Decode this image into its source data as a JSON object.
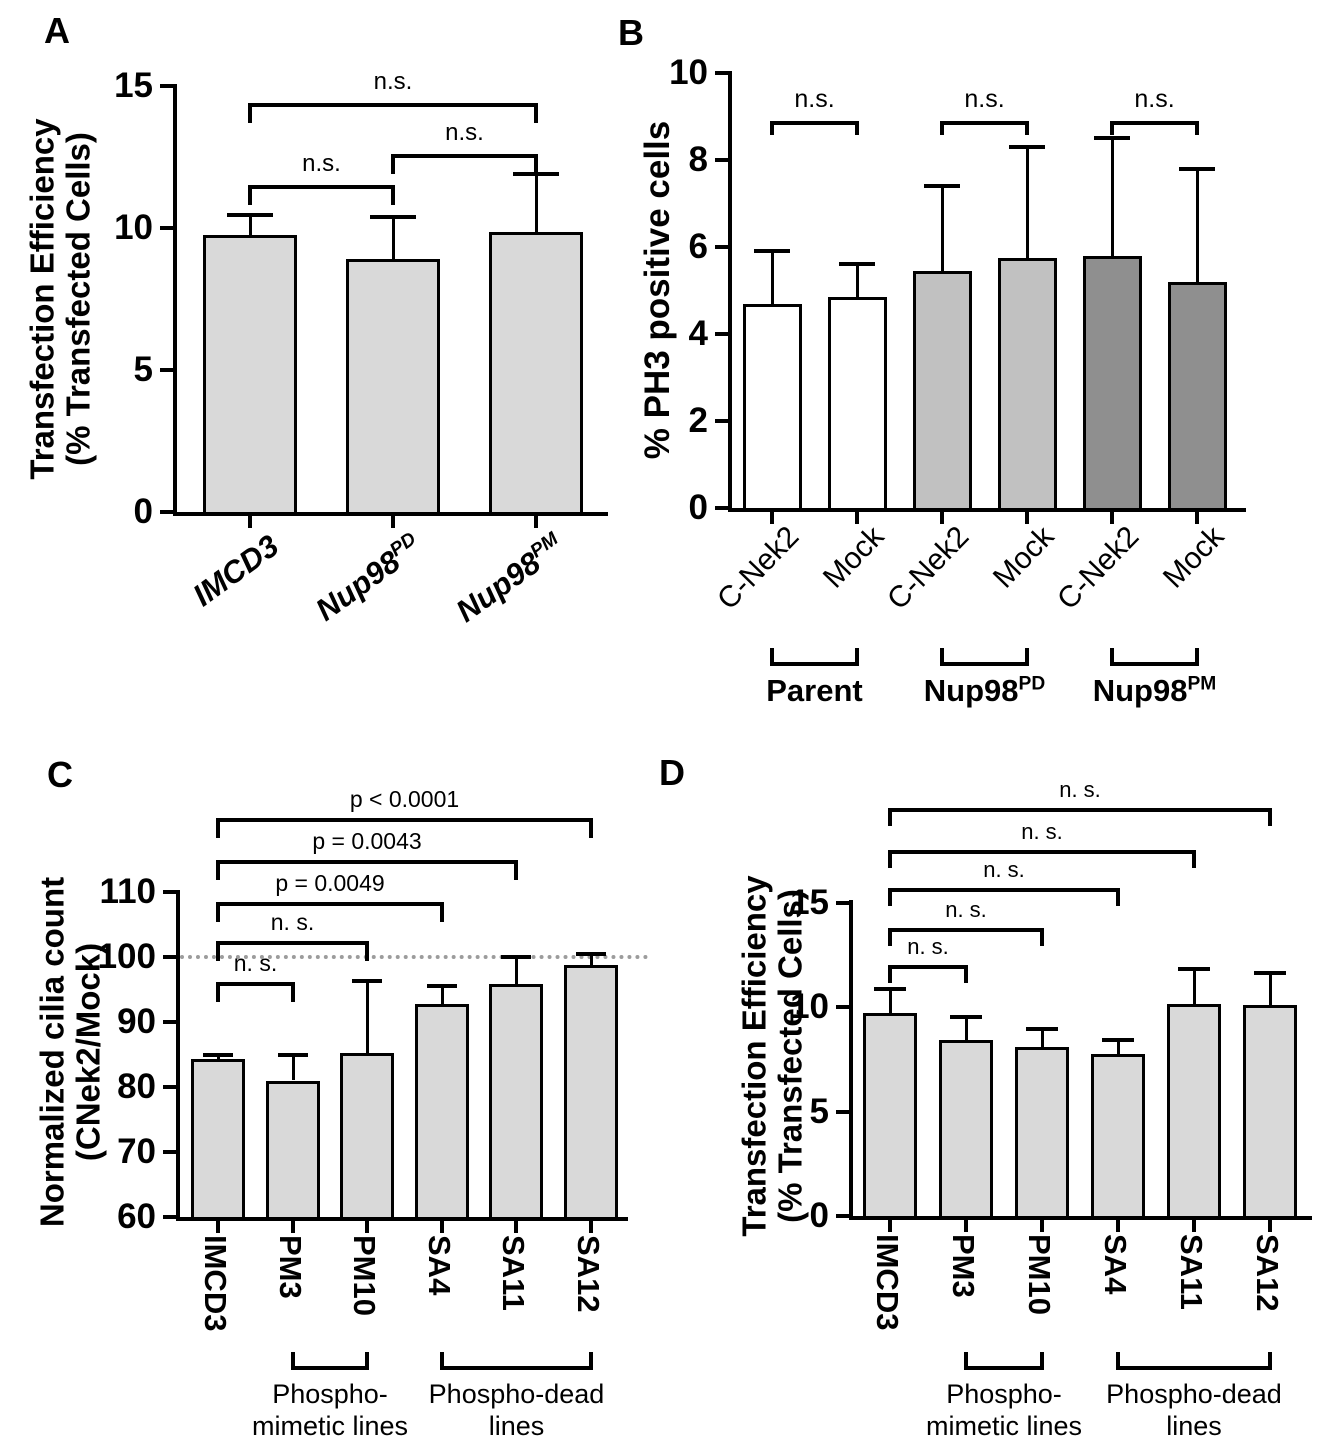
{
  "figure_title": "",
  "colors": {
    "axis": "#000000",
    "bar_light": "#d9d9d9",
    "bar_white": "#ffffff",
    "bar_mid": "#c1c1c1",
    "bar_dark": "#8f8f8f",
    "refline": "#9c9c9c",
    "text": "#000000"
  },
  "chart_data": [
    {
      "panel": "A",
      "type": "bar",
      "ylabel_lines": [
        "Transfection Efficiency",
        "(% Transfected Cells)"
      ],
      "ylim": [
        0,
        15
      ],
      "yticks": [
        0,
        5,
        10,
        15
      ],
      "categories": [
        {
          "text": "IMCD3",
          "sup": ""
        },
        {
          "text": "Nup98",
          "sup": "PD"
        },
        {
          "text": "Nup98",
          "sup": "PM"
        }
      ],
      "values": [
        9.75,
        8.9,
        9.85
      ],
      "errors_up": [
        0.7,
        1.5,
        2.05
      ],
      "fills": [
        "bar_light",
        "bar_light",
        "bar_light"
      ],
      "brackets": [
        {
          "from": 0,
          "to": 1,
          "y": 11.5,
          "label": "n.s."
        },
        {
          "from": 1,
          "to": 2,
          "y": 12.6,
          "label": "n.s."
        },
        {
          "from": 0,
          "to": 2,
          "y": 14.4,
          "label": "n.s."
        }
      ]
    },
    {
      "panel": "B",
      "type": "bar",
      "ylabel_lines": [
        "% PH3 positive cells"
      ],
      "ylim": [
        0,
        10
      ],
      "yticks": [
        0,
        2,
        4,
        6,
        8,
        10
      ],
      "categories": [
        {
          "text": "C-Nek2",
          "sup": ""
        },
        {
          "text": "Mock",
          "sup": ""
        },
        {
          "text": "C-Nek2",
          "sup": ""
        },
        {
          "text": "Mock",
          "sup": ""
        },
        {
          "text": "C-Nek2",
          "sup": ""
        },
        {
          "text": "Mock",
          "sup": ""
        }
      ],
      "values": [
        4.7,
        4.85,
        5.45,
        5.75,
        5.8,
        5.2
      ],
      "errors_up": [
        1.2,
        0.75,
        1.95,
        2.55,
        2.7,
        2.6
      ],
      "fills": [
        "bar_white",
        "bar_white",
        "bar_mid",
        "bar_mid",
        "bar_dark",
        "bar_dark"
      ],
      "brackets": [
        {
          "from": 0,
          "to": 1,
          "y": 8.9,
          "label": "n.s."
        },
        {
          "from": 2,
          "to": 3,
          "y": 8.9,
          "label": "n.s."
        },
        {
          "from": 4,
          "to": 5,
          "y": 8.9,
          "label": "n.s."
        }
      ],
      "groups": [
        {
          "label": "Parent",
          "sup": "",
          "from": 0,
          "to": 1
        },
        {
          "label": "Nup98",
          "sup": "PD",
          "from": 2,
          "to": 3
        },
        {
          "label": "Nup98",
          "sup": "PM",
          "from": 4,
          "to": 5
        }
      ]
    },
    {
      "panel": "C",
      "type": "bar",
      "ylabel_lines": [
        "Normalized cilia count",
        "(CNek2/Mock)"
      ],
      "ylim": [
        60,
        110
      ],
      "yticks": [
        60,
        70,
        80,
        90,
        100,
        110
      ],
      "refline": 100,
      "categories": [
        {
          "text": "IMCD3",
          "sup": ""
        },
        {
          "text": "PM3",
          "sup": ""
        },
        {
          "text": "PM10",
          "sup": ""
        },
        {
          "text": "SA4",
          "sup": ""
        },
        {
          "text": "SA11",
          "sup": ""
        },
        {
          "text": "SA12",
          "sup": ""
        }
      ],
      "values": [
        84.3,
        81.0,
        85.3,
        92.7,
        95.8,
        98.8
      ],
      "errors_up": [
        0.7,
        3.9,
        11.0,
        2.9,
        4.2,
        1.6
      ],
      "fills": [
        "bar_light",
        "bar_light",
        "bar_light",
        "bar_light",
        "bar_light",
        "bar_light"
      ],
      "brackets": [
        {
          "from": 0,
          "to": 1,
          "y": 96.2,
          "label": "n. s."
        },
        {
          "from": 0,
          "to": 2,
          "y": 102.4,
          "label": "n. s."
        },
        {
          "from": 0,
          "to": 3,
          "y": 108.5,
          "label": "p = 0.0049"
        },
        {
          "from": 0,
          "to": 4,
          "y": 114.9,
          "label": "p = 0.0043"
        },
        {
          "from": 0,
          "to": 5,
          "y": 121.4,
          "label": "p < 0.0001"
        }
      ],
      "groups": [
        {
          "label_lines": [
            "Phospho-",
            "mimetic lines"
          ],
          "from": 1,
          "to": 2
        },
        {
          "label_lines": [
            "Phospho-dead",
            "lines"
          ],
          "from": 3,
          "to": 5
        }
      ]
    },
    {
      "panel": "D",
      "type": "bar",
      "ylabel_lines": [
        "Transfection Efficiency",
        "(% Transfected Cells)"
      ],
      "ylim": [
        0,
        15
      ],
      "yticks": [
        0,
        5,
        10,
        15
      ],
      "categories": [
        {
          "text": "IMCD3",
          "sup": ""
        },
        {
          "text": "PM3",
          "sup": ""
        },
        {
          "text": "PM10",
          "sup": ""
        },
        {
          "text": "SA4",
          "sup": ""
        },
        {
          "text": "SA11",
          "sup": ""
        },
        {
          "text": "SA12",
          "sup": ""
        }
      ],
      "values": [
        9.7,
        8.4,
        8.1,
        7.75,
        10.15,
        10.1
      ],
      "errors_up": [
        1.15,
        1.1,
        0.85,
        0.65,
        1.65,
        1.55
      ],
      "fills": [
        "bar_light",
        "bar_light",
        "bar_light",
        "bar_light",
        "bar_light",
        "bar_light"
      ],
      "brackets": [
        {
          "from": 0,
          "to": 1,
          "y": 12.0,
          "label": "n. s."
        },
        {
          "from": 0,
          "to": 2,
          "y": 13.8,
          "label": "n. s."
        },
        {
          "from": 0,
          "to": 3,
          "y": 15.7,
          "label": "n. s."
        },
        {
          "from": 0,
          "to": 4,
          "y": 17.5,
          "label": "n. s."
        },
        {
          "from": 0,
          "to": 5,
          "y": 19.5,
          "label": "n. s."
        }
      ],
      "groups": [
        {
          "label_lines": [
            "Phospho-",
            "mimetic lines"
          ],
          "from": 1,
          "to": 2
        },
        {
          "label_lines": [
            "Phospho-dead",
            "lines"
          ],
          "from": 3,
          "to": 5
        }
      ]
    }
  ]
}
